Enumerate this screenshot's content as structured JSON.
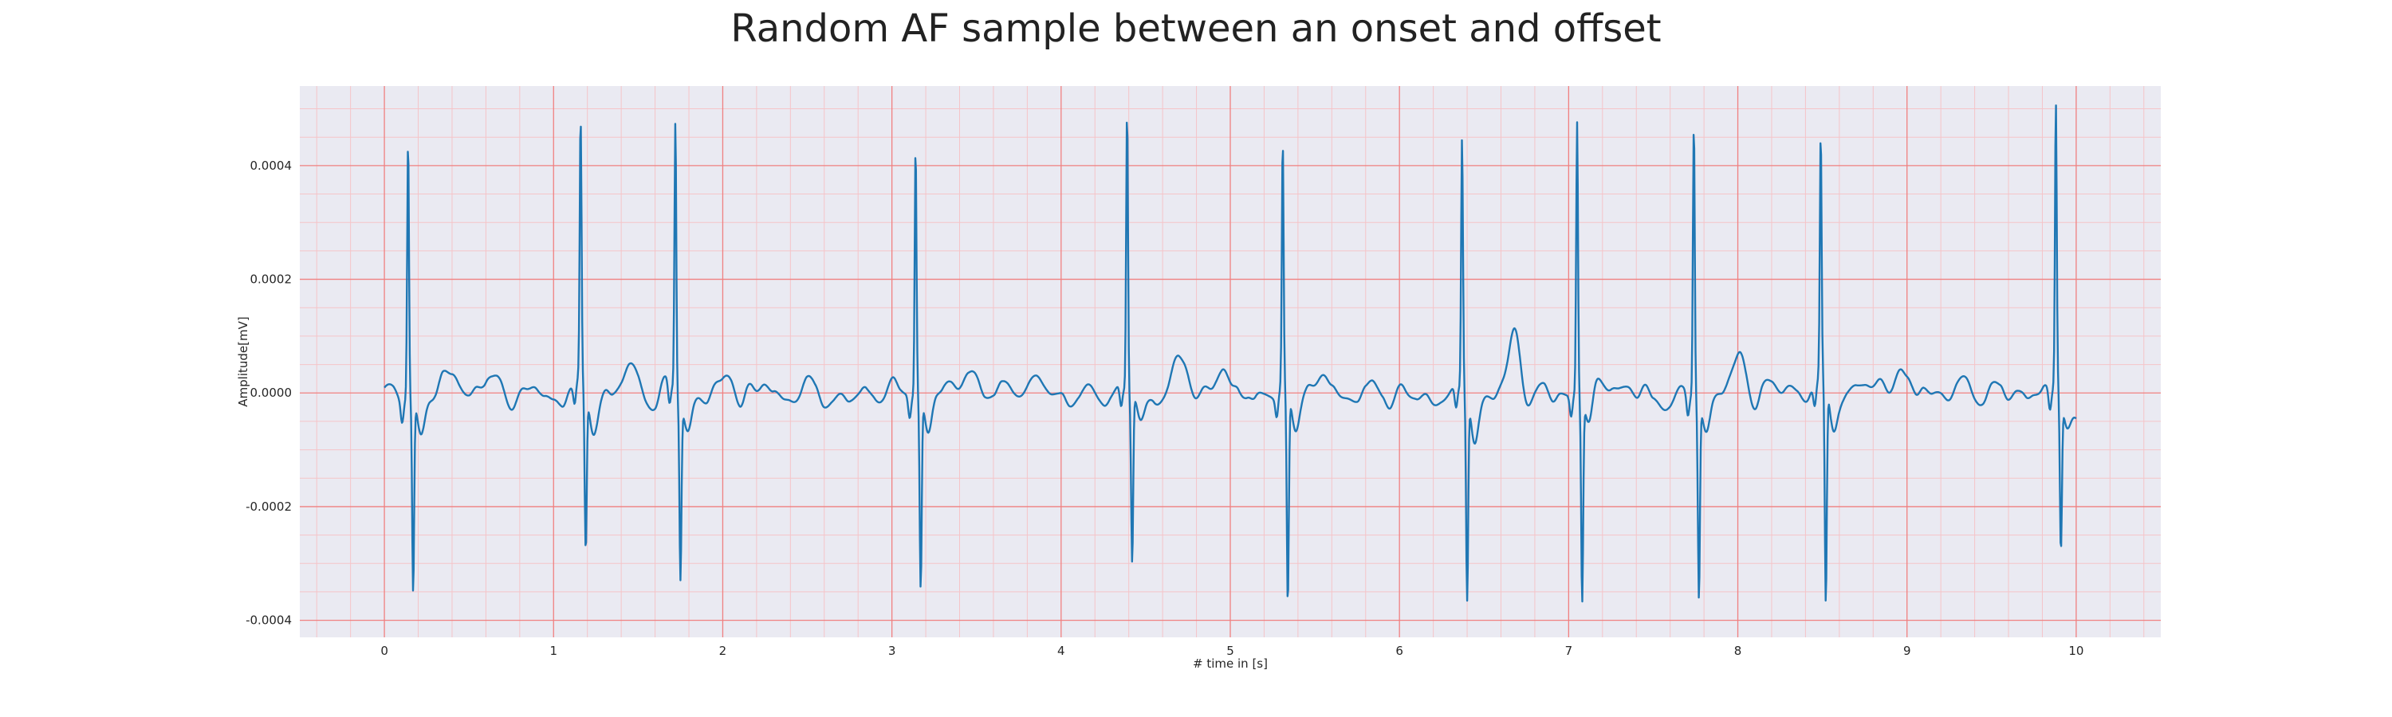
{
  "chart_data": {
    "type": "line",
    "title": "Random AF sample between an onset and offset",
    "xlabel": "# time in [s]",
    "ylabel": "Amplitude[mV]",
    "xlim": [
      -0.5,
      10.5
    ],
    "ylim": [
      -0.00043,
      0.00054
    ],
    "x_ticks": [
      0,
      1,
      2,
      3,
      4,
      5,
      6,
      7,
      8,
      9,
      10
    ],
    "x_tick_labels": [
      "0",
      "1",
      "2",
      "3",
      "4",
      "5",
      "6",
      "7",
      "8",
      "9",
      "10"
    ],
    "y_ticks": [
      0.0004,
      0.0002,
      0.0,
      -0.0002,
      -0.0004
    ],
    "y_tick_labels": [
      "0.0004",
      "0.0002",
      "0.0000",
      "-0.0002",
      "-0.0004"
    ],
    "grid": true,
    "minor_grid": true,
    "legend": "none",
    "colors": {
      "background": "#EAEAF2",
      "major_grid": "#F08080",
      "minor_grid": "#F5C4C8",
      "line": "#1F77B4"
    },
    "series": [
      {
        "beats": [
          {
            "t": 0.14,
            "r": 0.00045,
            "s": -0.00034
          },
          {
            "t": 1.16,
            "r": 0.000455,
            "s": -0.00028
          },
          {
            "t": 1.72,
            "r": 0.000473,
            "s": -0.00031
          },
          {
            "t": 3.14,
            "r": 0.000432,
            "s": -0.000337
          },
          {
            "t": 4.39,
            "r": 0.000495,
            "s": -0.000295
          },
          {
            "t": 5.31,
            "r": 0.000435,
            "s": -0.000372
          },
          {
            "t": 6.37,
            "r": 0.00044,
            "s": -0.00036
          },
          {
            "t": 7.05,
            "r": 0.000475,
            "s": -0.000355
          },
          {
            "t": 7.74,
            "r": 0.000477,
            "s": -0.000345
          },
          {
            "t": 8.49,
            "r": 0.000425,
            "s": -0.00039
          },
          {
            "t": 9.88,
            "r": 0.0005,
            "s": -0.0003
          }
        ],
        "baseline_waves": [
          {
            "t": 0.42,
            "a": 4e-05
          },
          {
            "t": 0.65,
            "a": 3e-05
          },
          {
            "t": 1.45,
            "a": 4.5e-05
          },
          {
            "t": 2.05,
            "a": 3e-05
          },
          {
            "t": 3.45,
            "a": 6e-05
          },
          {
            "t": 4.7,
            "a": 6e-05
          },
          {
            "t": 4.95,
            "a": 3.5e-05
          },
          {
            "t": 5.6,
            "a": 4e-05
          },
          {
            "t": 6.68,
            "a": 0.000115
          },
          {
            "t": 7.28,
            "a": 3e-05
          },
          {
            "t": 8.02,
            "a": 6e-05
          },
          {
            "t": 8.95,
            "a": 4e-05
          }
        ],
        "end_time": 10.0,
        "end_value": -4.5e-05
      }
    ]
  }
}
